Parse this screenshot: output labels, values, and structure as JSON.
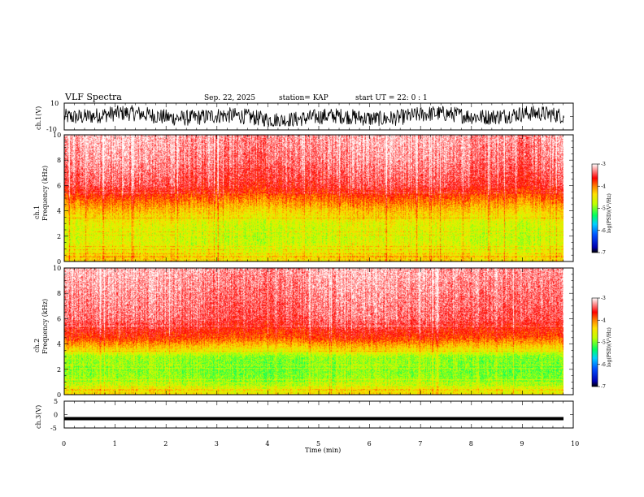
{
  "header": {
    "title": "VLF Spectra",
    "date": "Sep. 22, 2025",
    "station": "station= KAP",
    "start": "start UT =  22: 0  : 1"
  },
  "chart_data": [
    {
      "type": "line",
      "panel": "ch1-waveform",
      "ylabel": "ch.1(V)",
      "ylim": [
        -10,
        10
      ],
      "y_ticks": [
        "10",
        "-10"
      ],
      "xlim": [
        0,
        10
      ],
      "description_values": {
        "typical_min": -7,
        "typical_max": 9
      }
    },
    {
      "type": "heatmap",
      "panel": "ch1-spectrogram",
      "ylabel": "ch.1 Frequency (kHz)",
      "ylim": [
        0,
        10
      ],
      "y_ticks": [
        "0",
        "2",
        "4",
        "6",
        "8",
        "10"
      ],
      "xlim": [
        0,
        9.82
      ],
      "colorbar": {
        "label": "log(PSD)(V²/Hz)",
        "range": [
          -7,
          -3
        ],
        "ticks": [
          "-3",
          "-4",
          "-5",
          "-6",
          "-7"
        ]
      },
      "levels_by_freq_khz": [
        [
          0.2,
          -4.4
        ],
        [
          1.0,
          -4.6
        ],
        [
          2.0,
          -4.7
        ],
        [
          3.0,
          -4.6
        ],
        [
          4.0,
          -4.3
        ],
        [
          5.0,
          -3.9
        ],
        [
          6.0,
          -3.5
        ],
        [
          8.0,
          -3.3
        ],
        [
          10.0,
          -3.2
        ]
      ]
    },
    {
      "type": "heatmap",
      "panel": "ch2-spectrogram",
      "ylabel": "ch.2 Frequency (kHz)",
      "ylim": [
        0,
        10
      ],
      "y_ticks": [
        "0",
        "2",
        "4",
        "6",
        "8",
        "10"
      ],
      "xlim": [
        0,
        9.82
      ],
      "colorbar": {
        "label": "log(PSD)(V²/Hz)",
        "range": [
          -7,
          -3
        ],
        "ticks": [
          "-3",
          "-4",
          "-5",
          "-6",
          "-7"
        ]
      },
      "levels_by_freq_khz": [
        [
          0.2,
          -4.5
        ],
        [
          1.0,
          -4.9
        ],
        [
          2.0,
          -5.0
        ],
        [
          3.0,
          -4.9
        ],
        [
          3.6,
          -4.4
        ],
        [
          4.5,
          -3.8
        ],
        [
          6.0,
          -3.4
        ],
        [
          8.0,
          -3.3
        ],
        [
          10.0,
          -3.2
        ]
      ]
    },
    {
      "type": "line",
      "panel": "ch3-waveform",
      "ylabel": "ch.3(V)",
      "ylim": [
        -5,
        5
      ],
      "y_ticks": [
        "5",
        "0",
        "-5"
      ],
      "xlim": [
        0,
        10
      ],
      "description_values": {
        "level": -1.5,
        "amplitude": 0.3
      }
    }
  ],
  "xaxis": {
    "label": "Time (min)",
    "ticks": [
      "0",
      "1",
      "2",
      "3",
      "4",
      "5",
      "6",
      "7",
      "8",
      "9",
      "10"
    ]
  },
  "colors": {
    "waveform": "#000000",
    "frame": "#000000"
  }
}
